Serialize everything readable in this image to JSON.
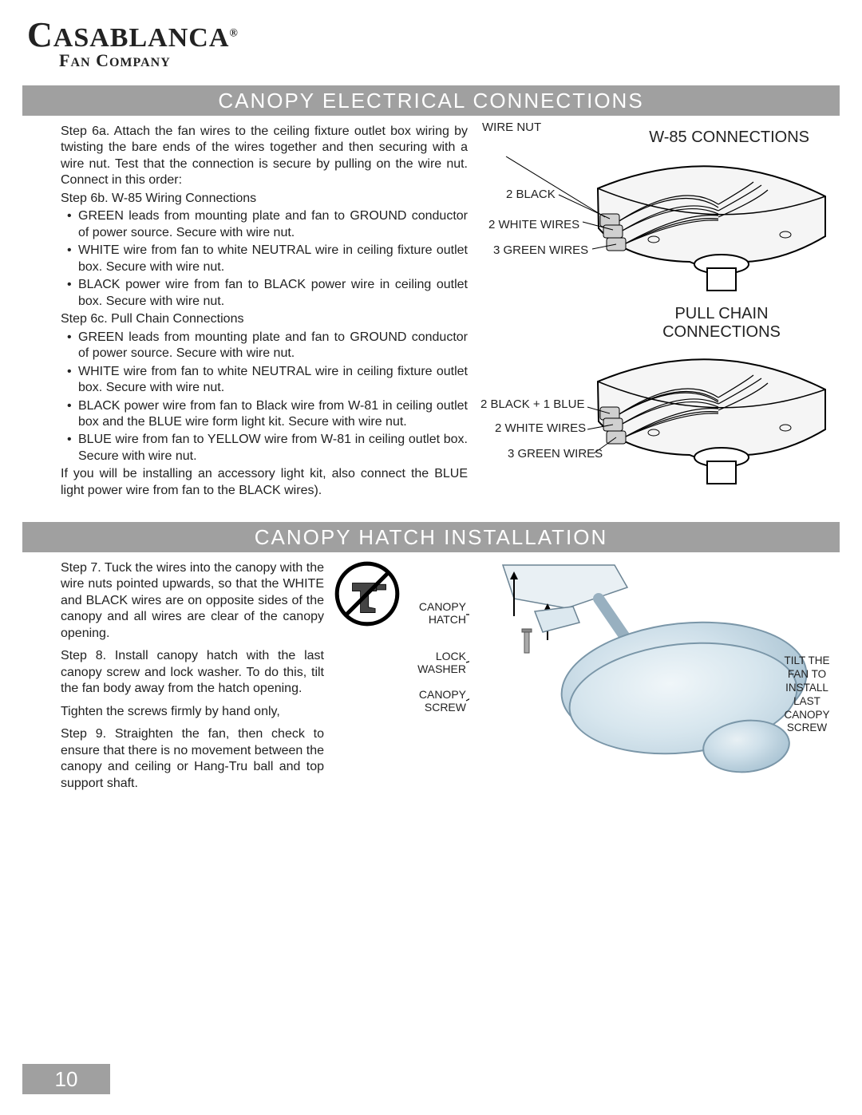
{
  "logo": {
    "name_line1": "CASABLANCA",
    "name_line2": "FAN COMPANY",
    "trademark": "®"
  },
  "page_number": "10",
  "section1": {
    "title": "CANOPY ELECTRICAL CONNECTIONS",
    "step6a": "Step 6a. Attach the fan wires to the ceiling fixture outlet box wiring by twisting the bare ends of the wires together and then securing with a wire nut. Test that the connection is secure by pulling on the wire nut. Connect in this order:",
    "step6b_title": "Step 6b. W-85 Wiring Connections",
    "step6b_items": [
      "GREEN leads from mounting plate and fan to GROUND conductor of power source. Secure with wire nut.",
      "WHITE wire from fan to white NEUTRAL wire in ceiling fixture outlet box. Secure with wire nut.",
      "BLACK power wire from fan to BLACK power wire in ceiling outlet box. Secure with wire nut."
    ],
    "step6c_title": "Step 6c. Pull Chain Connections",
    "step6c_items": [
      "GREEN leads from mounting plate and fan to GROUND conductor of power source. Secure with wire nut.",
      "WHITE wire from fan to white NEUTRAL wire in ceiling fixture outlet box. Secure with wire nut.",
      "BLACK power wire from fan to Black wire from W-81 in ceiling outlet box and the BLUE wire form light kit. Secure with wire nut.",
      "BLUE wire from fan to YELLOW wire from W-81 in ceiling outlet box. Secure with wire nut."
    ],
    "footer": "If you will be installing an accessory light kit, also connect the BLUE light power wire from fan to the BLACK wires).",
    "diagram1": {
      "title": "W-85 CONNECTIONS",
      "wire_nut": "WIRE NUT",
      "labels": [
        "2 BLACK",
        "2 WHITE WIRES",
        "3 GREEN WIRES"
      ]
    },
    "diagram2": {
      "title": "PULL CHAIN CONNECTIONS",
      "labels": [
        "2 BLACK + 1 BLUE",
        "2 WHITE WIRES",
        "3 GREEN WIRES"
      ]
    },
    "colors": {
      "header_bg": "#a0a0a0",
      "header_text": "#ffffff",
      "body_text": "#231f20"
    }
  },
  "section2": {
    "title": "CANOPY HATCH INSTALLATION",
    "step7": "Step 7. Tuck the wires into the canopy with the wire nuts pointed upwards, so that the WHITE and BLACK wires are on opposite sides of the canopy and all wires are clear of the canopy opening.",
    "step8": "Step 8. Install canopy hatch with the last canopy screw and lock washer. To do this, tilt the fan body away from the hatch opening.",
    "tighten": "Tighten the screws firmly by hand only,",
    "step9": "Step 9. Straighten the fan, then check to ensure that there is no movement between the canopy and ceiling or Hang-Tru ball and top support shaft.",
    "labels": {
      "canopy_hatch": "CANOPY HATCH",
      "lock_washer": "LOCK WASHER",
      "canopy_screw": "CANOPY SCREW",
      "tilt": "TILT THE FAN TO INSTALL LAST CANOPY SCREW"
    },
    "fan_color": "#cfe0ea"
  }
}
